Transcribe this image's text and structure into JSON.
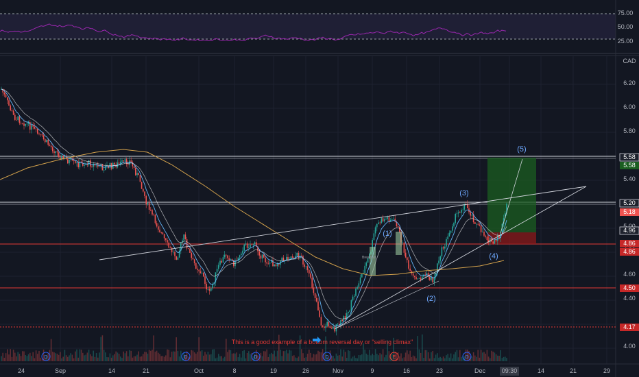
{
  "rsi_panel": {
    "levels": [
      "75.00",
      "50.00",
      "25.00"
    ],
    "line_color": "#9c27b0",
    "band_color": "#7e57c2"
  },
  "price_axis": {
    "currency": "CAD",
    "ticks": [
      "6.20",
      "6.00",
      "5.80",
      "5.40",
      "5.00",
      "4.80",
      "4.60",
      "4.40",
      "4.00"
    ]
  },
  "price_tags": [
    {
      "value": "5.58",
      "style": "white"
    },
    {
      "value": "5.58",
      "style": "green"
    },
    {
      "value": "5.20",
      "style": "white"
    },
    {
      "value": "5.18",
      "style": "red"
    },
    {
      "value": "4.96",
      "style": "white"
    },
    {
      "value": "4.86",
      "style": "red"
    },
    {
      "value": "4.86",
      "style": "red"
    },
    {
      "value": "4.50",
      "style": "red"
    },
    {
      "value": "4.17",
      "style": "red"
    }
  ],
  "time_axis": {
    "ticks": [
      "24",
      "Sep",
      "14",
      "21",
      "Oct",
      "8",
      "19",
      "26",
      "Nov",
      "9",
      "16",
      "23",
      "Dec",
      "09:30",
      "14",
      "21",
      "29"
    ]
  },
  "wave_labels": [
    "(1)",
    "(2)",
    "(3)",
    "(4)",
    "(5)"
  ],
  "annotations": {
    "selling_climax": "This is a good example of a bottom reversal day or \"selling climax\"",
    "breakout": "Breakout"
  },
  "event_markers": [
    "D",
    "D",
    "D",
    "D",
    "E",
    "D"
  ],
  "colors": {
    "background": "#131722",
    "up": "#26a69a",
    "down": "#ef5350",
    "ma_long": "#d4a24c",
    "ma_fast": "#64b5f6",
    "support_red": "#e53935",
    "target_green": "#1b5e20",
    "stop_red": "#8b1a1a"
  },
  "chart_data": {
    "type": "candlestick",
    "currency": "CAD",
    "y_range": [
      4.0,
      6.35
    ],
    "horizontal_levels": [
      5.58,
      5.2,
      4.86,
      4.5,
      4.17
    ],
    "price_path": [
      [
        "Aug 24",
        6.25
      ],
      [
        "Sep",
        5.75
      ],
      [
        "Sep 14",
        5.7
      ],
      [
        "Sep 21",
        5.45
      ],
      [
        "Sep 25",
        4.95
      ],
      [
        "Oct",
        4.45
      ],
      [
        "Oct 8",
        4.85
      ],
      [
        "Oct 19",
        4.8
      ],
      [
        "Oct 26",
        4.75
      ],
      [
        "Oct 30",
        4.15
      ],
      [
        "Nov",
        4.2
      ],
      [
        "Nov 9",
        5.05
      ],
      [
        "Nov 12",
        5.1
      ],
      [
        "Nov 16",
        4.6
      ],
      [
        "Nov 23",
        4.55
      ],
      [
        "Nov 27",
        5.18
      ],
      [
        "Dec",
        4.86
      ],
      [
        "Dec 4",
        5.2
      ]
    ],
    "wave_points": [
      {
        "label": "(1)",
        "x": "Nov 12",
        "y": 5.1
      },
      {
        "label": "(2)",
        "x": "Nov 20",
        "y": 4.55
      },
      {
        "label": "(3)",
        "x": "Nov 27",
        "y": 5.18
      },
      {
        "label": "(4)",
        "x": "Dec 1",
        "y": 4.86
      },
      {
        "label": "(5)",
        "x": "Dec 10",
        "y": 5.58
      }
    ]
  }
}
